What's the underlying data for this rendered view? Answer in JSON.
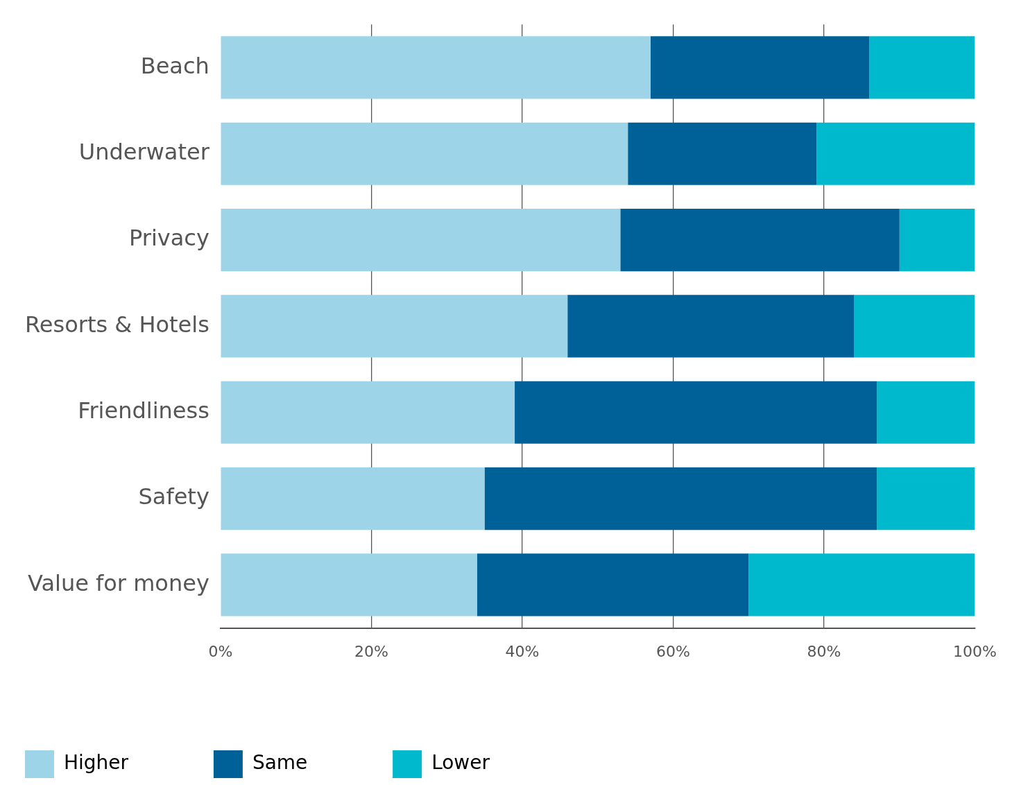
{
  "chart_data": {
    "type": "bar",
    "orientation": "horizontal",
    "stacked": true,
    "categories": [
      "Beach",
      "Underwater",
      "Privacy",
      "Resorts & Hotels",
      "Friendliness",
      "Safety",
      "Value for money"
    ],
    "series": [
      {
        "name": "Higher",
        "color": "#9dd4e8",
        "values": [
          57,
          54,
          53,
          46,
          39,
          35,
          34
        ]
      },
      {
        "name": "Same",
        "color": "#006098",
        "values": [
          29,
          25,
          37,
          38,
          48,
          52,
          36
        ]
      },
      {
        "name": "Lower",
        "color": "#00b9cc",
        "values": [
          14,
          21,
          10,
          16,
          13,
          13,
          30
        ]
      }
    ],
    "xlim": [
      0,
      100
    ],
    "xticks": [
      {
        "value": 0,
        "label": "0%"
      },
      {
        "value": 20,
        "label": "20%"
      },
      {
        "value": 40,
        "label": "40%"
      },
      {
        "value": 60,
        "label": "60%"
      },
      {
        "value": 80,
        "label": "80%"
      },
      {
        "value": 100,
        "label": "100%"
      }
    ],
    "grid": "x",
    "legend": "bottom"
  }
}
